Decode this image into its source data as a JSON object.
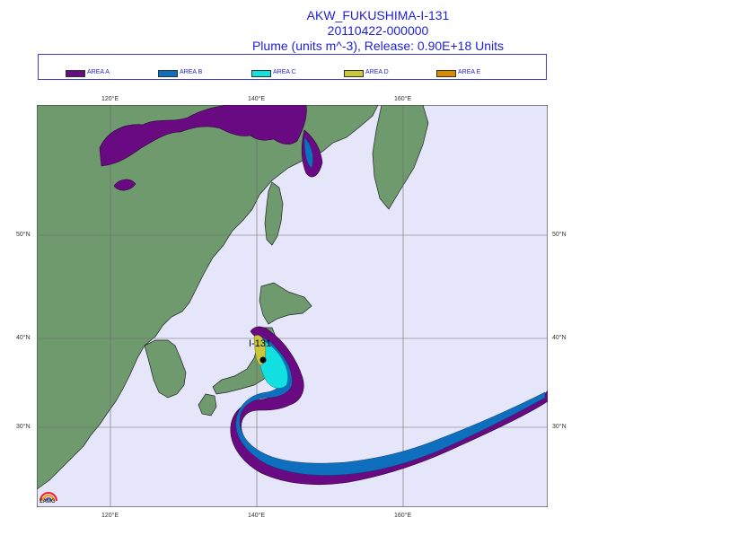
{
  "title": {
    "line1": "AKW_FUKUSHIMA-I-131",
    "line2": "20110422-000000",
    "line3": "Plume (units m^-3), Release:  0.90E+18 Units"
  },
  "legend": [
    {
      "label": "AREA A",
      "color": "#6a0a83"
    },
    {
      "label": "AREA B",
      "color": "#0f6fbf"
    },
    {
      "label": "AREA C",
      "color": "#13e0e0"
    },
    {
      "label": "AREA D",
      "color": "#c8c83a"
    },
    {
      "label": "AREA E",
      "color": "#d98a00"
    }
  ],
  "axes": {
    "x_top": [
      "120°E",
      "140°E",
      "160°E"
    ],
    "x_bottom": [
      "120°E",
      "140°E",
      "160°E"
    ],
    "y_left": [
      "50°N",
      "40°N",
      "30°N"
    ],
    "y_right": [
      "50°N",
      "40°N",
      "30°N"
    ]
  },
  "map": {
    "source_label": "I-131",
    "ocean_color": "#e6e6fa",
    "land_color": "#6e9a6e"
  },
  "logo": {
    "text": "ZAMG"
  }
}
